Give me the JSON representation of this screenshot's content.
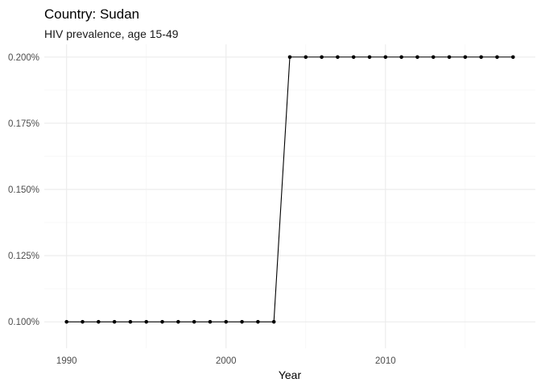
{
  "chart_data": {
    "type": "line",
    "title": "Country: Sudan",
    "subtitle": "HIV prevalence, age 15-49",
    "xlabel": "Year",
    "ylabel": "",
    "xlim": [
      1988.6,
      2019.4
    ],
    "ylim": [
      0.09,
      0.2048
    ],
    "x_ticks": [
      1990,
      2000,
      2010
    ],
    "x_minor_ticks": [
      1995,
      2005,
      2015
    ],
    "y_ticks": [
      0.1,
      0.125,
      0.15,
      0.175,
      0.2
    ],
    "y_tick_labels": [
      "0.100%",
      "0.125%",
      "0.150%",
      "0.175%",
      "0.200%"
    ],
    "y_minor_ticks": [
      0.1125,
      0.1375,
      0.1625,
      0.1875
    ],
    "grid": true,
    "legend": "none",
    "series": [
      {
        "x": [
          1990,
          1991,
          1992,
          1993,
          1994,
          1995,
          1996,
          1997,
          1998,
          1999,
          2000,
          2001,
          2002,
          2003,
          2004,
          2005,
          2006,
          2007,
          2008,
          2009,
          2010,
          2011,
          2012,
          2013,
          2014,
          2015,
          2016,
          2017,
          2018
        ],
        "y": [
          0.1,
          0.1,
          0.1,
          0.1,
          0.1,
          0.1,
          0.1,
          0.1,
          0.1,
          0.1,
          0.1,
          0.1,
          0.1,
          0.1,
          0.2,
          0.2,
          0.2,
          0.2,
          0.2,
          0.2,
          0.2,
          0.2,
          0.2,
          0.2,
          0.2,
          0.2,
          0.2,
          0.2,
          0.2
        ]
      }
    ],
    "colors": {
      "line": "#000000",
      "point": "#000000",
      "grid": "#ebebeb",
      "tick_text": "#4d4d4d"
    }
  }
}
